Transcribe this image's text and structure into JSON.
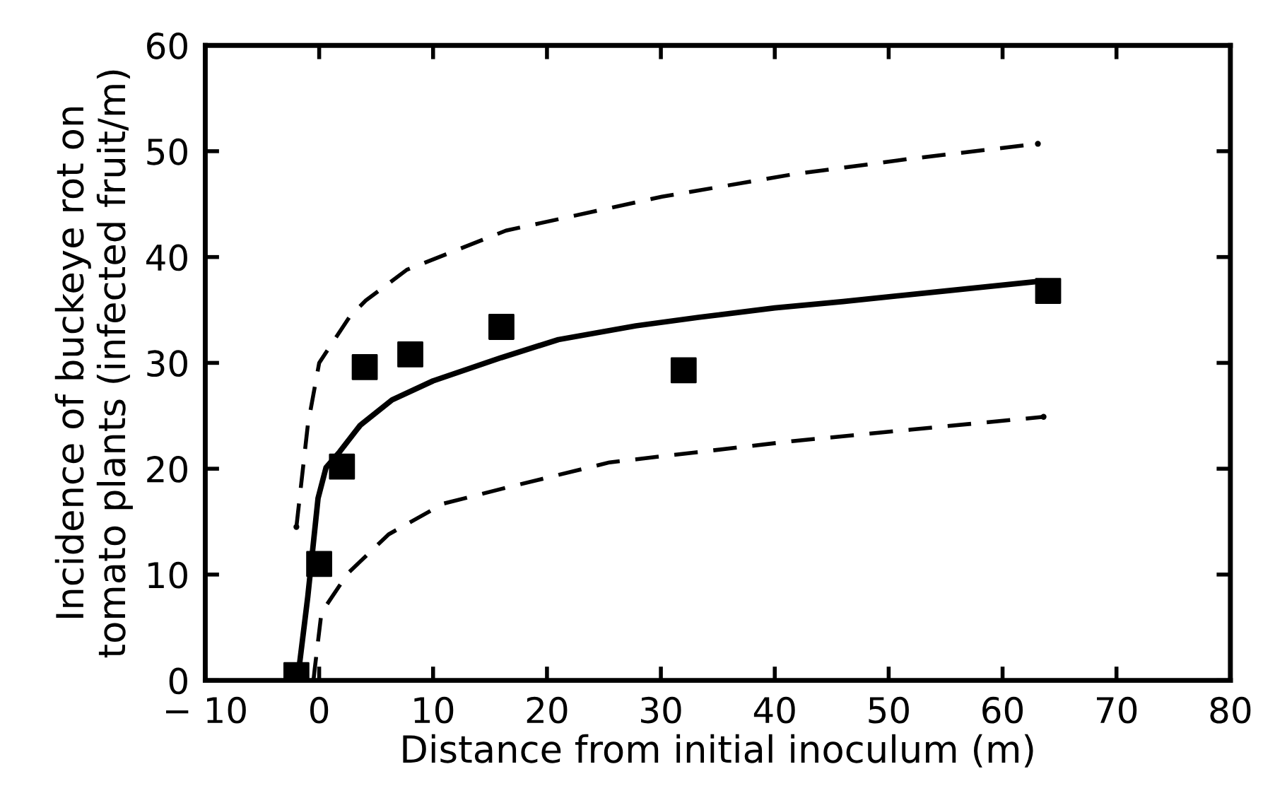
{
  "chart_data": {
    "type": "scatter",
    "xlabel": "Distance from initial inoculum (m)",
    "ylabel": "Incidence of buckeye rot on\ntomato plants (infected fruit/m)",
    "xlim": [
      -10,
      80
    ],
    "xticks": [
      -10,
      0,
      10,
      20,
      30,
      40,
      50,
      60,
      70,
      80
    ],
    "ylim": [
      0,
      60
    ],
    "yticks": [
      0,
      10,
      20,
      30,
      40,
      50,
      60
    ],
    "grid": false,
    "legend": false,
    "series": [
      {
        "color": "#000000",
        "marker": "square",
        "x": [
          -2,
          0,
          2,
          4,
          8,
          16,
          32,
          64
        ],
        "values": [
          0.5,
          11,
          20.2,
          29.6,
          30.8,
          33.4,
          29.3,
          36.8
        ]
      },
      {
        "type": "line",
        "color": "#000000",
        "line_style": "solid",
        "marker": "none",
        "x": [
          -1.9,
          -1.0,
          -0.1,
          0.6,
          1.8,
          3.6,
          6.4,
          10,
          16,
          21,
          27.8,
          33.3,
          40,
          46,
          55,
          63.2
        ],
        "values": [
          0,
          7.9,
          17.2,
          20.1,
          21.6,
          24.1,
          26.5,
          28.3,
          30.5,
          32.2,
          33.5,
          34.3,
          35.2,
          35.8,
          36.8,
          37.7
        ]
      },
      {
        "type": "line",
        "color": "#000000",
        "line_style": "dashed",
        "marker": "none",
        "x": [
          -2,
          -1,
          0,
          2.7,
          4.1,
          7.7,
          16.4,
          30.1,
          41.5,
          52,
          63.1
        ],
        "values": [
          14.5,
          24.1,
          30,
          34.4,
          35.9,
          38.8,
          42.5,
          45.7,
          47.8,
          49.3,
          50.7
        ]
      },
      {
        "type": "line",
        "color": "#000000",
        "line_style": "dashed",
        "marker": "none",
        "x": [
          -0.5,
          -0.4,
          0.2,
          2.5,
          6.1,
          10.9,
          16.4,
          25.5,
          41.5,
          52,
          63.6
        ],
        "values": [
          0,
          1,
          6.4,
          10.1,
          13.8,
          16.7,
          18.2,
          20.6,
          22.6,
          23.7,
          24.9
        ]
      }
    ]
  }
}
